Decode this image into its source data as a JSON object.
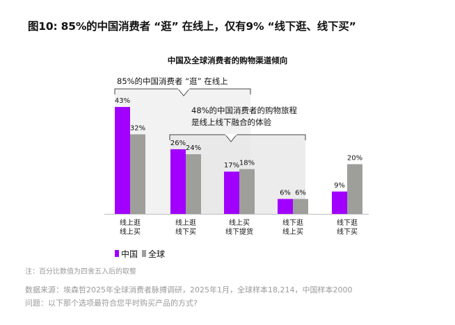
{
  "figure_title": "图10: 85%的中国消费者 “逛” 在线上，仅有9% “线下逛、线下买”",
  "chart_data": {
    "type": "bar",
    "title": "中国及全球消费者的购物渠道倾向",
    "categories": [
      [
        "线上逛",
        "线上买"
      ],
      [
        "线上逛",
        "线下买"
      ],
      [
        "线上买",
        "线下提货"
      ],
      [
        "线下逛",
        "线上买"
      ],
      [
        "线下逛",
        "线下买"
      ]
    ],
    "series": [
      {
        "name": "中国",
        "color": "#a100ff",
        "values": [
          43,
          26,
          17,
          6,
          9
        ],
        "labels": [
          "43%",
          "26%",
          "17%",
          "6%",
          "9%"
        ]
      },
      {
        "name": "全球",
        "color": "#9e9e9a",
        "values": [
          32,
          24,
          18,
          6,
          20
        ],
        "labels": [
          "32%",
          "24%",
          "18%",
          "6%",
          "20%"
        ]
      }
    ],
    "ylim": [
      0,
      50
    ],
    "grid": false,
    "legend": "bottom-left",
    "annotations": [
      {
        "text": "85%的中国消费者 “逛” 在线上"
      },
      {
        "lines": [
          "48%的中国消费者的购物旅程",
          "是线上线下融合的体验"
        ]
      }
    ]
  },
  "footnote": "注：百分比数值为四舍五入后的取整",
  "source": "数据来源：埃森哲2025年全球消费者脉搏调研，2025年1月，全球样本18,214，中国样本2000",
  "question": "问题：以下那个选项最符合您平时购买产品的方式?"
}
